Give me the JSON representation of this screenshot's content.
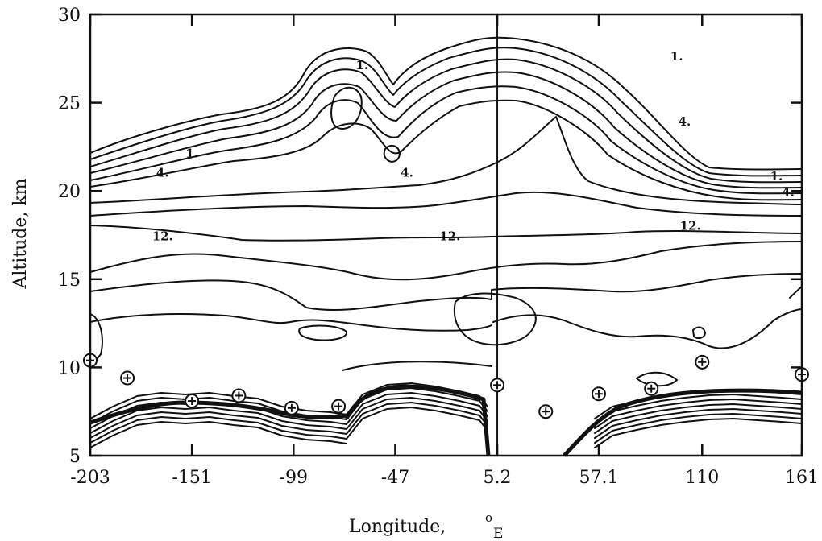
{
  "chart_data": {
    "type": "contour",
    "xlabel": "Longitude,",
    "xlabel_superscript": "o",
    "xlabel_unit": "E",
    "ylabel": "Altitude, km",
    "x_tick_labels": [
      "-203",
      "-151",
      "-99",
      "-47",
      "5.2",
      "57.1",
      "110",
      "161"
    ],
    "x_ticks": [
      -203,
      -151,
      -99,
      -47,
      5.2,
      57.1,
      110,
      161
    ],
    "xlim": [
      -203,
      161
    ],
    "y_ticks": [
      5,
      10,
      15,
      20,
      25,
      30
    ],
    "y_tick_labels": [
      "5",
      "10",
      "15",
      "20",
      "25",
      "30"
    ],
    "ylim": [
      5,
      30
    ],
    "vertical_divider_x": 5.2,
    "contour_labels": [
      {
        "text": "1.",
        "x": -64,
        "y": 26.9
      },
      {
        "text": "1.",
        "x": 97,
        "y": 27.4
      },
      {
        "text": "1.",
        "x": -151,
        "y": 21.9
      },
      {
        "text": "4.",
        "x": -41,
        "y": 20.8
      },
      {
        "text": "4.",
        "x": 101,
        "y": 23.7
      },
      {
        "text": "4.",
        "x": -166,
        "y": 20.8
      },
      {
        "text": "1.",
        "x": 148,
        "y": 20.6
      },
      {
        "text": "4.",
        "x": 154,
        "y": 19.7
      },
      {
        "text": "12.",
        "x": -166,
        "y": 17.2
      },
      {
        "text": "12.",
        "x": -19,
        "y": 17.2
      },
      {
        "text": "12.",
        "x": 104,
        "y": 17.8
      }
    ],
    "surface_markers": [
      {
        "x": -203,
        "y": 10.4
      },
      {
        "x": -184,
        "y": 9.4
      },
      {
        "x": -151,
        "y": 8.1
      },
      {
        "x": -127,
        "y": 8.4
      },
      {
        "x": -100,
        "y": 7.7
      },
      {
        "x": -76,
        "y": 7.8
      },
      {
        "x": 5.2,
        "y": 9.0
      },
      {
        "x": 30,
        "y": 7.5
      },
      {
        "x": 57.1,
        "y": 8.5
      },
      {
        "x": 84,
        "y": 8.8
      },
      {
        "x": 110,
        "y": 10.3
      },
      {
        "x": 161,
        "y": 9.6
      }
    ]
  }
}
